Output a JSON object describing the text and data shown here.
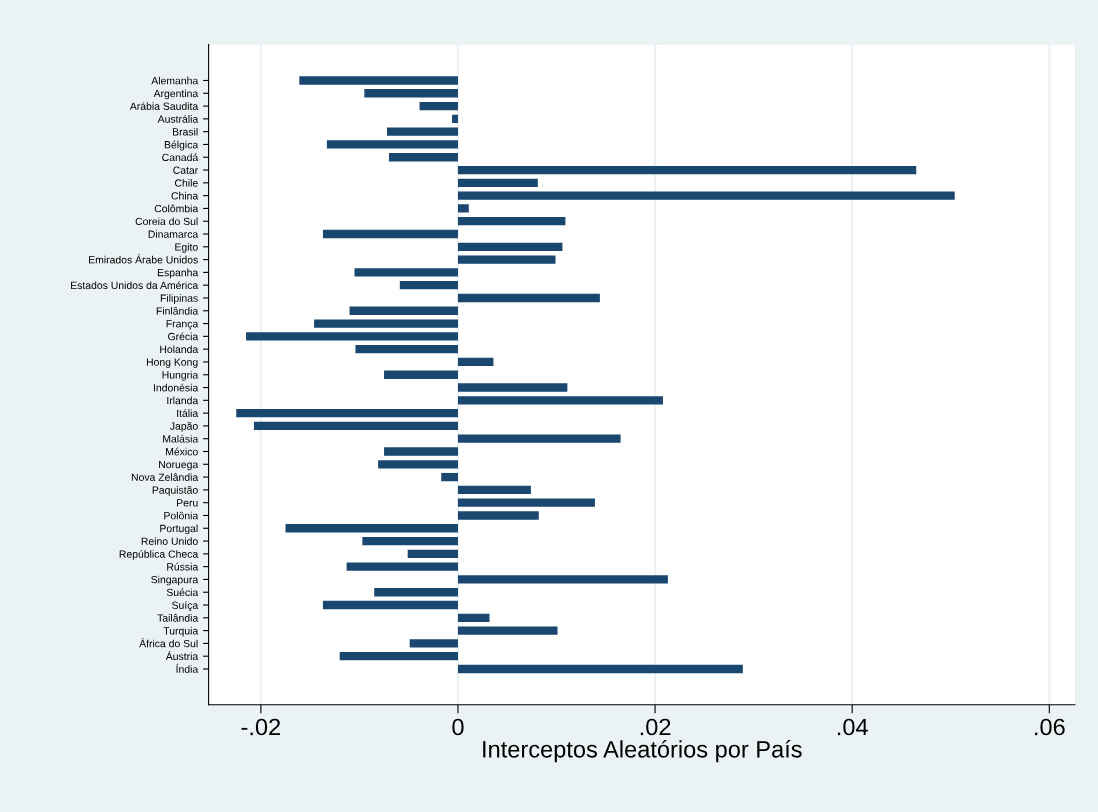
{
  "chart_data": {
    "type": "bar",
    "orientation": "horizontal",
    "xlabel": "Interceptos Aleatórios por País",
    "categories": [
      "Alemanha",
      "Argentina",
      "Arábia Saudita",
      "Austrália",
      "Brasil",
      "Bélgica",
      "Canadá",
      "Catar",
      "Chile",
      "China",
      "Colômbia",
      "Coreia do Sul",
      "Dinamarca",
      "Egito",
      "Emirados Árabe Unidos",
      "Espanha",
      "Estados Unidos da América",
      "Filipinas",
      "Finlândia",
      "França",
      "Grécia",
      "Holanda",
      "Hong Kong",
      "Hungria",
      "Indonésia",
      "Irlanda",
      "Itália",
      "Japão",
      "Malásia",
      "México",
      "Noruega",
      "Nova Zelândia",
      "Paquistão",
      "Peru",
      "Polônia",
      "Portugal",
      "Reino Unido",
      "República Checa",
      "Rússia",
      "Singapura",
      "Suécia",
      "Suíça",
      "Tailândia",
      "Turquia",
      "África do Sul",
      "Áustria",
      "Índia"
    ],
    "values": [
      -0.0161,
      -0.0095,
      -0.0039,
      -0.0006,
      -0.0072,
      -0.0133,
      -0.007,
      0.0465,
      0.0081,
      0.0504,
      0.0011,
      0.0109,
      -0.0137,
      0.0106,
      0.0099,
      -0.0105,
      -0.0059,
      0.0144,
      -0.011,
      -0.0146,
      -0.0215,
      -0.0104,
      0.0036,
      -0.0075,
      0.0111,
      0.0208,
      -0.0225,
      -0.0207,
      0.0165,
      -0.0075,
      -0.0081,
      -0.0017,
      0.0074,
      0.0139,
      0.0082,
      -0.0175,
      -0.0097,
      -0.0051,
      -0.0113,
      0.0213,
      -0.0085,
      -0.0137,
      0.0032,
      0.0101,
      -0.0049,
      -0.012,
      0.0289
    ],
    "color": "#1a476f",
    "xlim": [
      -0.0253,
      0.0626
    ],
    "xticks": [
      {
        "value": -0.02,
        "label": "-.02"
      },
      0,
      {
        "value": 0.02,
        "label": ".02"
      },
      {
        "value": 0.04,
        "label": ".04"
      },
      {
        "value": 0.06,
        "label": ".06"
      }
    ],
    "grid": "x"
  }
}
